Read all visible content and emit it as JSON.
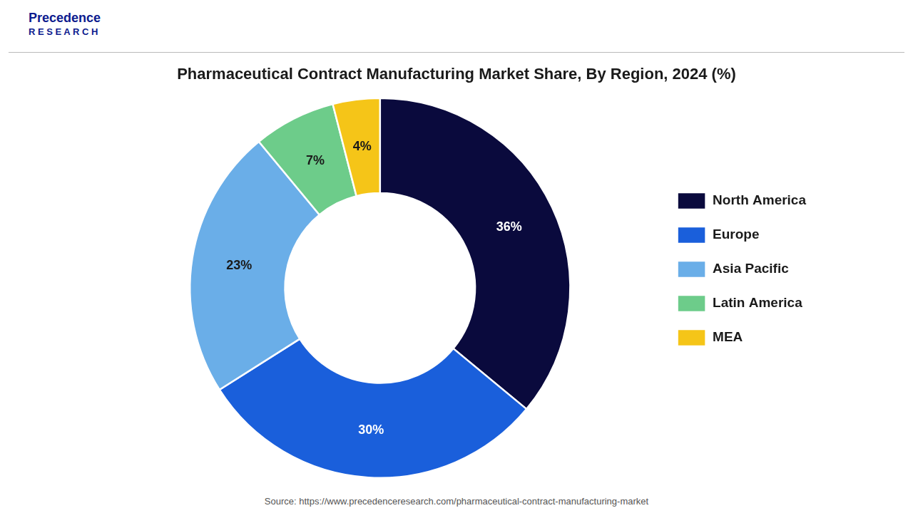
{
  "chart_data": {
    "type": "doughnut",
    "title": "Pharmaceutical Contract Manufacturing Market Share, By Region, 2024 (%)",
    "categories": [
      "North America",
      "Europe",
      "Asia Pacific",
      "Latin America",
      "MEA"
    ],
    "values": [
      36,
      30,
      23,
      7,
      4
    ],
    "value_labels": [
      "36%",
      "30%",
      "23%",
      "7%",
      "4%"
    ],
    "colors": [
      "#0a0a3d",
      "#1a5fdb",
      "#6aaee8",
      "#6dcc8a",
      "#f5c518"
    ],
    "data_labels": true,
    "legend": "right",
    "annotations": [
      "Precedence",
      "R E S E A R C H",
      "Source: https://www.precedenceresearch.com/pharmaceutical-contract-manufacturing-market"
    ]
  }
}
